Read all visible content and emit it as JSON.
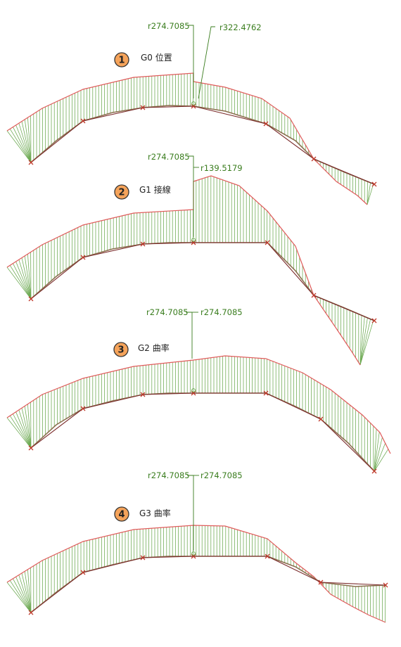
{
  "colors": {
    "comb": "#6aa84f",
    "envelope": "#e05a5a",
    "curve": "#8c7050",
    "polygon": "#7a2a2a",
    "vertex": "#c0392b",
    "label": "#3a7d1e",
    "badge_fill": "#f5a35a",
    "badge_stroke": "#333333"
  },
  "panels": [
    {
      "number": "1",
      "title": "G0 位置",
      "label_left": "r274.7085",
      "label_right": "r322.4762",
      "vertex_icon": "x-mark-icon"
    },
    {
      "number": "2",
      "title": "G1 接線",
      "label_left": "r274.7085",
      "label_right": "r139.5179",
      "vertex_icon": "x-mark-icon"
    },
    {
      "number": "3",
      "title": "G2 曲率",
      "label_left": "r274.7085",
      "label_right": "r274.7085",
      "vertex_icon": "x-mark-icon"
    },
    {
      "number": "4",
      "title": "G3 曲率",
      "label_left": "r274.7085",
      "label_right": "r274.7085",
      "vertex_icon": "x-mark-icon"
    }
  ]
}
